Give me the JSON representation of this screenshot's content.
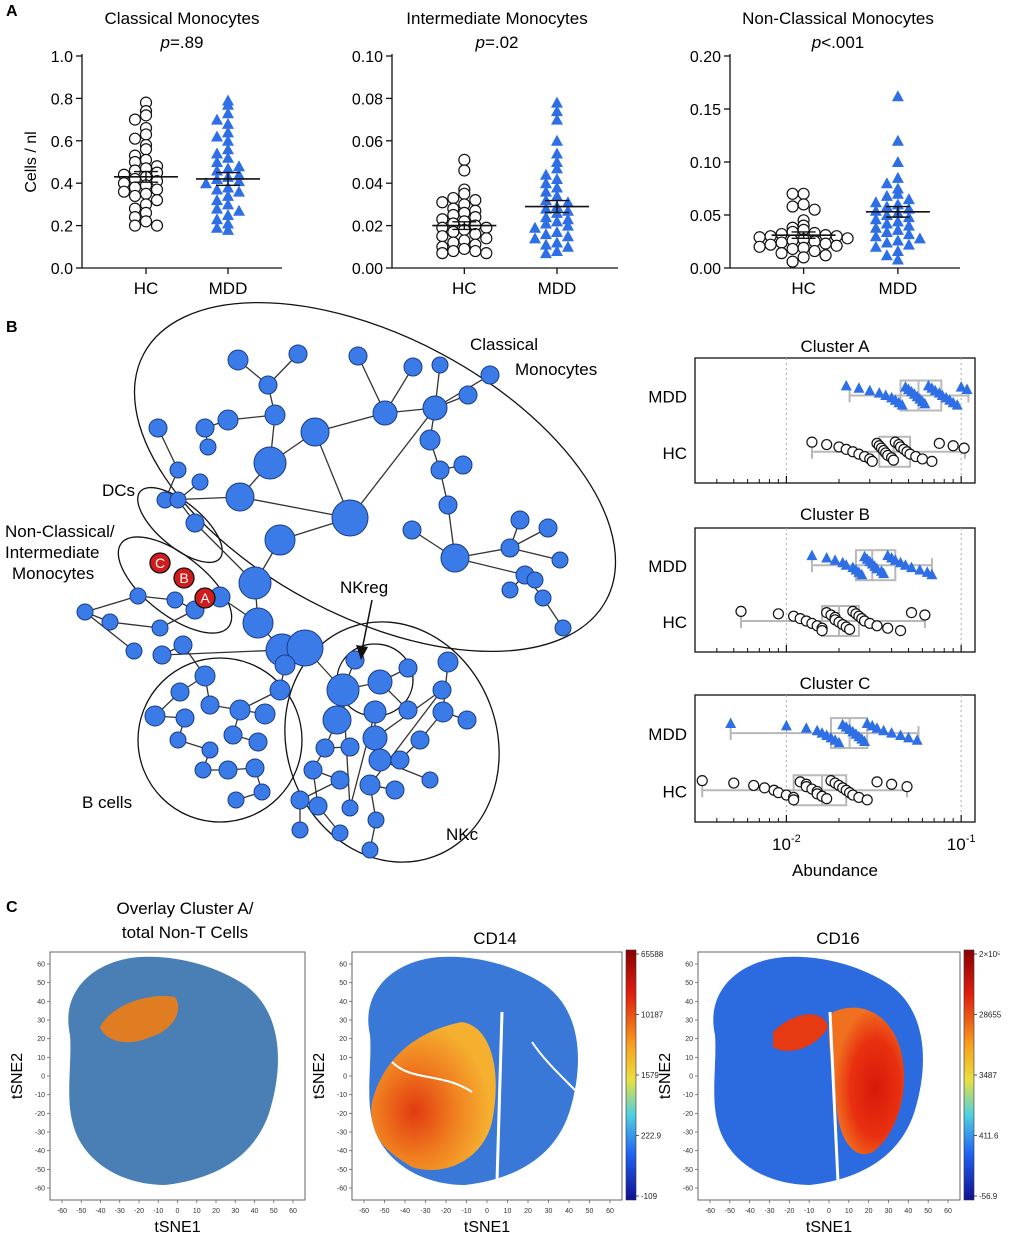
{
  "panel_labels": [
    "A",
    "B",
    "C"
  ],
  "colors": {
    "blue": "#2f6fe6",
    "node_blue": "#3b7be8",
    "red_node": "#d01c1c",
    "orange": "#e07d22",
    "steel": "#4a7fb5",
    "box_gray": "#b8b8b8",
    "hc_edge": "#111111"
  },
  "chart_data": [
    {
      "type": "scatter",
      "title": "Classical Monocytes",
      "p_prefix": "p",
      "p_value": "=.89",
      "ylabel": "Cells / nl",
      "categories": [
        "HC",
        "MDD"
      ],
      "ylim": [
        0,
        1.0
      ],
      "yticks": [
        "0.0",
        "0.2",
        "0.4",
        "0.6",
        "0.8",
        "1.0"
      ],
      "yticks_values": [
        0,
        0.2,
        0.4,
        0.6,
        0.8,
        1.0
      ],
      "means": [
        0.43,
        0.42
      ],
      "sems": [
        0.025,
        0.03
      ],
      "series": [
        {
          "name": "HC",
          "marker": "circle",
          "values": [
            0.78,
            0.74,
            0.72,
            0.7,
            0.66,
            0.63,
            0.61,
            0.58,
            0.56,
            0.53,
            0.51,
            0.5,
            0.48,
            0.47,
            0.46,
            0.45,
            0.44,
            0.43,
            0.42,
            0.41,
            0.4,
            0.39,
            0.38,
            0.37,
            0.36,
            0.35,
            0.34,
            0.32,
            0.3,
            0.28,
            0.26,
            0.24,
            0.22,
            0.2,
            0.2
          ]
        },
        {
          "name": "MDD",
          "marker": "triangle",
          "values": [
            0.79,
            0.77,
            0.73,
            0.7,
            0.68,
            0.64,
            0.62,
            0.6,
            0.56,
            0.54,
            0.52,
            0.5,
            0.48,
            0.47,
            0.46,
            0.44,
            0.43,
            0.42,
            0.41,
            0.4,
            0.38,
            0.37,
            0.36,
            0.34,
            0.32,
            0.3,
            0.28,
            0.27,
            0.25,
            0.23,
            0.21,
            0.19,
            0.18
          ]
        }
      ]
    },
    {
      "type": "scatter",
      "title": "Intermediate Monocytes",
      "p_prefix": "p",
      "p_value": "=.02",
      "ylabel": "",
      "categories": [
        "HC",
        "MDD"
      ],
      "ylim": [
        0,
        0.1
      ],
      "yticks": [
        "0.00",
        "0.02",
        "0.04",
        "0.06",
        "0.08",
        "0.10"
      ],
      "yticks_values": [
        0,
        0.02,
        0.04,
        0.06,
        0.08,
        0.1
      ],
      "means": [
        0.02,
        0.029
      ],
      "sems": [
        0.0018,
        0.0028
      ],
      "series": [
        {
          "name": "HC",
          "marker": "circle",
          "values": [
            0.051,
            0.046,
            0.037,
            0.035,
            0.033,
            0.032,
            0.031,
            0.03,
            0.028,
            0.027,
            0.026,
            0.025,
            0.024,
            0.023,
            0.022,
            0.021,
            0.02,
            0.019,
            0.019,
            0.018,
            0.017,
            0.016,
            0.015,
            0.014,
            0.013,
            0.012,
            0.011,
            0.01,
            0.009,
            0.008,
            0.008,
            0.007,
            0.007
          ]
        },
        {
          "name": "MDD",
          "marker": "triangle",
          "values": [
            0.078,
            0.074,
            0.07,
            0.06,
            0.054,
            0.05,
            0.047,
            0.044,
            0.042,
            0.04,
            0.038,
            0.036,
            0.034,
            0.032,
            0.031,
            0.029,
            0.028,
            0.027,
            0.026,
            0.024,
            0.023,
            0.022,
            0.021,
            0.02,
            0.019,
            0.017,
            0.016,
            0.015,
            0.014,
            0.012,
            0.011,
            0.01,
            0.008,
            0.007
          ]
        }
      ]
    },
    {
      "type": "scatter",
      "title": "Non-Classical Monocytes",
      "p_prefix": "p",
      "p_value": "<.001",
      "ylabel": "",
      "categories": [
        "HC",
        "MDD"
      ],
      "ylim": [
        0,
        0.2
      ],
      "yticks": [
        "0.00",
        "0.05",
        "0.10",
        "0.15",
        "0.20"
      ],
      "yticks_values": [
        0,
        0.05,
        0.1,
        0.15,
        0.2
      ],
      "means": [
        0.031,
        0.053
      ],
      "sems": [
        0.003,
        0.005
      ],
      "series": [
        {
          "name": "HC",
          "marker": "circle",
          "values": [
            0.07,
            0.07,
            0.06,
            0.058,
            0.055,
            0.045,
            0.04,
            0.038,
            0.036,
            0.034,
            0.033,
            0.032,
            0.031,
            0.03,
            0.03,
            0.029,
            0.028,
            0.027,
            0.026,
            0.025,
            0.024,
            0.023,
            0.022,
            0.021,
            0.02,
            0.019,
            0.018,
            0.016,
            0.014,
            0.012,
            0.01,
            0.006
          ]
        },
        {
          "name": "MDD",
          "marker": "triangle",
          "values": [
            0.162,
            0.12,
            0.1,
            0.085,
            0.08,
            0.075,
            0.07,
            0.068,
            0.065,
            0.062,
            0.06,
            0.058,
            0.056,
            0.054,
            0.052,
            0.05,
            0.048,
            0.046,
            0.044,
            0.042,
            0.04,
            0.038,
            0.036,
            0.034,
            0.032,
            0.03,
            0.028,
            0.026,
            0.024,
            0.022,
            0.02,
            0.016,
            0.012,
            0.008
          ]
        }
      ]
    },
    {
      "type": "boxplot",
      "title": "Cluster A",
      "categories": [
        "MDD",
        "HC"
      ],
      "xscale": "log",
      "xlim": [
        0.003,
        0.12
      ],
      "box": {
        "MDD": {
          "min": 0.023,
          "q1": 0.045,
          "median": 0.057,
          "q3": 0.077,
          "max": 0.11
        },
        "HC": {
          "min": 0.014,
          "q1": 0.034,
          "median": 0.041,
          "q3": 0.051,
          "max": 0.105
        }
      },
      "points": {
        "MDD": [
          0.022,
          0.026,
          0.03,
          0.034,
          0.037,
          0.04,
          0.042,
          0.044,
          0.046,
          0.048,
          0.05,
          0.052,
          0.054,
          0.056,
          0.058,
          0.06,
          0.062,
          0.065,
          0.068,
          0.071,
          0.075,
          0.078,
          0.082,
          0.086,
          0.09,
          0.095,
          0.1,
          0.108
        ],
        "HC": [
          0.014,
          0.017,
          0.02,
          0.022,
          0.024,
          0.026,
          0.028,
          0.03,
          0.031,
          0.033,
          0.034,
          0.035,
          0.036,
          0.037,
          0.038,
          0.04,
          0.041,
          0.042,
          0.044,
          0.045,
          0.047,
          0.049,
          0.051,
          0.055,
          0.06,
          0.068,
          0.075,
          0.09,
          0.104
        ]
      }
    },
    {
      "type": "boxplot",
      "title": "Cluster B",
      "categories": [
        "MDD",
        "HC"
      ],
      "xscale": "log",
      "xlim": [
        0.003,
        0.12
      ],
      "box": {
        "MDD": {
          "min": 0.014,
          "q1": 0.025,
          "median": 0.031,
          "q3": 0.042,
          "max": 0.068
        },
        "HC": {
          "min": 0.0055,
          "q1": 0.016,
          "median": 0.02,
          "q3": 0.026,
          "max": 0.062
        }
      },
      "points": {
        "MDD": [
          0.014,
          0.017,
          0.019,
          0.021,
          0.022,
          0.024,
          0.025,
          0.026,
          0.027,
          0.028,
          0.029,
          0.03,
          0.031,
          0.032,
          0.033,
          0.035,
          0.036,
          0.038,
          0.04,
          0.042,
          0.045,
          0.048,
          0.052,
          0.058,
          0.064,
          0.068
        ],
        "HC": [
          0.0055,
          0.009,
          0.011,
          0.012,
          0.013,
          0.014,
          0.015,
          0.016,
          0.016,
          0.017,
          0.018,
          0.019,
          0.019,
          0.02,
          0.021,
          0.022,
          0.023,
          0.024,
          0.025,
          0.026,
          0.027,
          0.028,
          0.03,
          0.033,
          0.038,
          0.045,
          0.052,
          0.062
        ]
      }
    },
    {
      "type": "boxplot",
      "title": "Cluster C",
      "categories": [
        "MDD",
        "HC"
      ],
      "xscale": "log",
      "xlim": [
        0.003,
        0.12
      ],
      "box": {
        "MDD": {
          "min": 0.0048,
          "q1": 0.018,
          "median": 0.023,
          "q3": 0.029,
          "max": 0.057
        },
        "HC": {
          "min": 0.0033,
          "q1": 0.011,
          "median": 0.016,
          "q3": 0.022,
          "max": 0.049
        }
      },
      "points": {
        "MDD": [
          0.0048,
          0.01,
          0.013,
          0.015,
          0.016,
          0.017,
          0.018,
          0.019,
          0.02,
          0.021,
          0.022,
          0.023,
          0.024,
          0.025,
          0.026,
          0.027,
          0.028,
          0.029,
          0.031,
          0.033,
          0.036,
          0.04,
          0.045,
          0.05,
          0.056
        ],
        "HC": [
          0.0033,
          0.005,
          0.0065,
          0.0075,
          0.0085,
          0.009,
          0.01,
          0.011,
          0.011,
          0.012,
          0.013,
          0.013,
          0.014,
          0.015,
          0.015,
          0.016,
          0.017,
          0.018,
          0.019,
          0.02,
          0.021,
          0.022,
          0.023,
          0.024,
          0.026,
          0.029,
          0.033,
          0.04,
          0.049
        ]
      }
    }
  ],
  "cluster_axis": {
    "xlabel": "Abundance",
    "ticks": [
      {
        "base": "10",
        "exp": "-2",
        "value": 0.01
      },
      {
        "base": "10",
        "exp": "-1",
        "value": 0.1
      }
    ]
  },
  "tree": {
    "labels": {
      "classical1": "Classical",
      "classical2": "Monocytes",
      "dcs": "DCs",
      "noncl1": "Non-Classical/",
      "noncl2": "Intermediate",
      "noncl3": "Monocytes",
      "nkreg": "NKreg",
      "bcells": "B cells",
      "nkc": "NKc"
    },
    "red_nodes": [
      "C",
      "B",
      "A"
    ]
  },
  "tsne": {
    "panels": [
      {
        "title1": "Overlay Cluster A/",
        "title2": "total Non-T Cells",
        "colorbar": []
      },
      {
        "title1": "CD14",
        "title2": "",
        "colorbar": [
          "65588",
          "10187",
          "1579",
          "222.9",
          "-109"
        ]
      },
      {
        "title1": "CD16",
        "title2": "",
        "colorbar": [
          "2×10⁵",
          "28655",
          "3487",
          "411.6",
          "-56.9"
        ]
      }
    ],
    "xlabel": "tSNE1",
    "ylabel": "tSNE2",
    "ticks": [
      "-60",
      "-50",
      "-40",
      "-30",
      "-20",
      "-10",
      "0",
      "10",
      "20",
      "30",
      "40",
      "50",
      "60"
    ],
    "tick_values": [
      -60,
      -50,
      -40,
      -30,
      -20,
      -10,
      0,
      10,
      20,
      30,
      40,
      50,
      60
    ]
  }
}
